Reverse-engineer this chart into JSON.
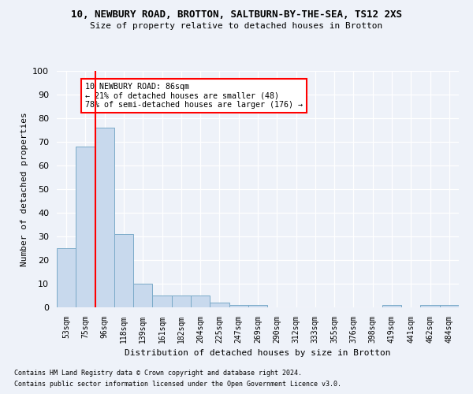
{
  "title1": "10, NEWBURY ROAD, BROTTON, SALTBURN-BY-THE-SEA, TS12 2XS",
  "title2": "Size of property relative to detached houses in Brotton",
  "xlabel": "Distribution of detached houses by size in Brotton",
  "ylabel": "Number of detached properties",
  "categories": [
    "53sqm",
    "75sqm",
    "96sqm",
    "118sqm",
    "139sqm",
    "161sqm",
    "182sqm",
    "204sqm",
    "225sqm",
    "247sqm",
    "269sqm",
    "290sqm",
    "312sqm",
    "333sqm",
    "355sqm",
    "376sqm",
    "398sqm",
    "419sqm",
    "441sqm",
    "462sqm",
    "484sqm"
  ],
  "values": [
    25,
    68,
    76,
    31,
    10,
    5,
    5,
    5,
    2,
    1,
    1,
    0,
    0,
    0,
    0,
    0,
    0,
    1,
    0,
    1,
    1
  ],
  "bar_color": "#c8d9ed",
  "bar_edge_color": "#7aaac8",
  "vline_color": "red",
  "annotation_text": "10 NEWBURY ROAD: 86sqm\n← 21% of detached houses are smaller (48)\n78% of semi-detached houses are larger (176) →",
  "annotation_box_color": "white",
  "annotation_box_edge": "red",
  "ylim": [
    0,
    100
  ],
  "yticks": [
    0,
    10,
    20,
    30,
    40,
    50,
    60,
    70,
    80,
    90,
    100
  ],
  "footnote1": "Contains HM Land Registry data © Crown copyright and database right 2024.",
  "footnote2": "Contains public sector information licensed under the Open Government Licence v3.0.",
  "background_color": "#eef2f9"
}
